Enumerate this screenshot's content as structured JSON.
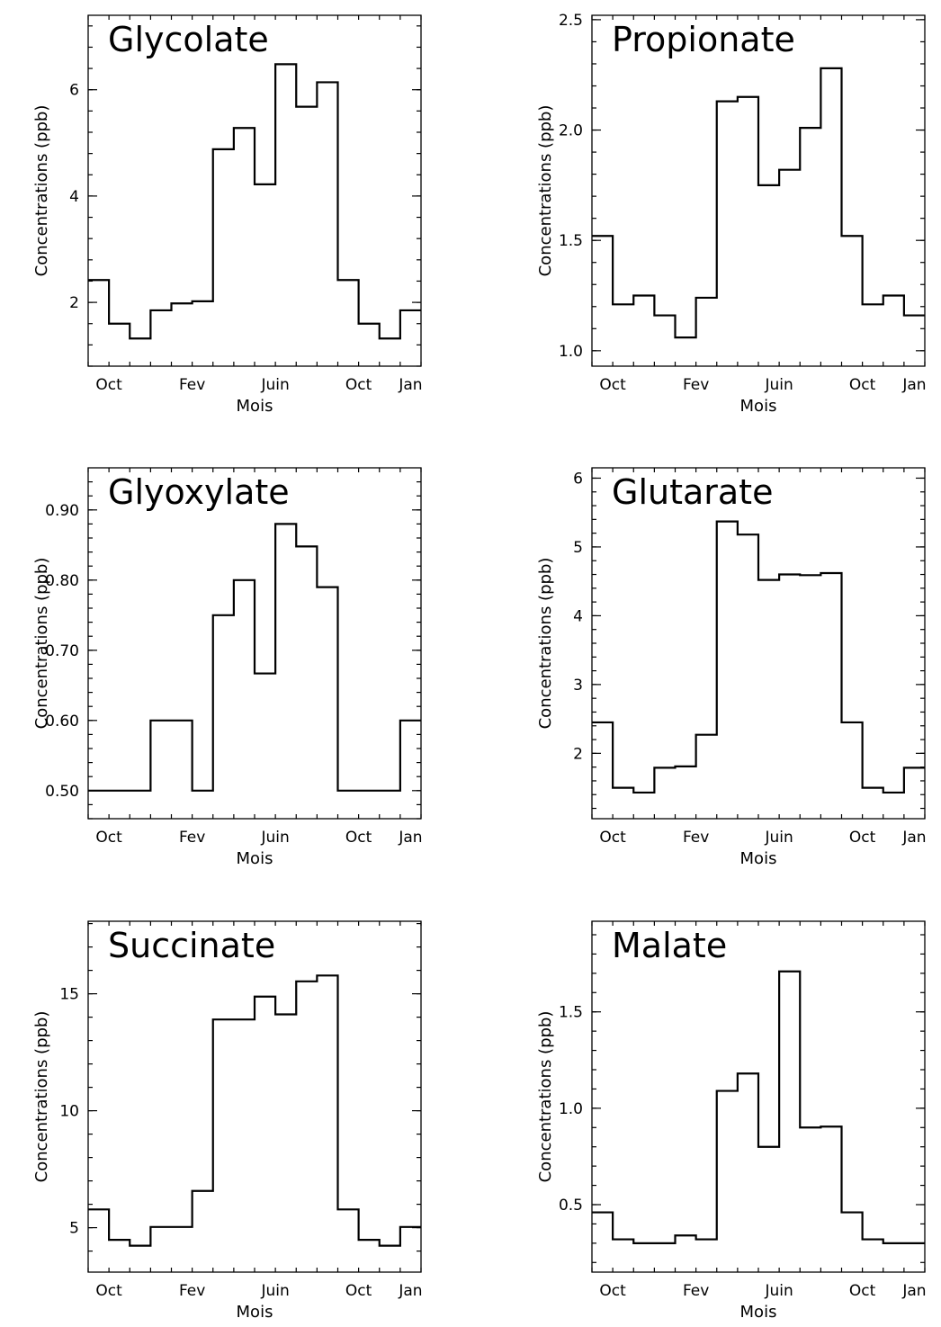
{
  "chart_data": [
    {
      "type": "line",
      "title": "Glycolate",
      "xlabel": "Mois",
      "ylabel": "Concentrations (ppb)",
      "x_tick_labels": [
        "Oct",
        "Fev",
        "Juin",
        "Oct",
        "Jan"
      ],
      "y_ticks": [
        2,
        4,
        6
      ],
      "y_tick_labels": [
        "2",
        "4",
        "6"
      ],
      "ylim": [
        0.8,
        7.4
      ],
      "step": true,
      "values": [
        2.42,
        1.6,
        1.32,
        1.85,
        1.98,
        2.02,
        4.88,
        5.28,
        4.22,
        6.48,
        5.68,
        6.14,
        2.42,
        1.6,
        1.32,
        1.85
      ]
    },
    {
      "type": "line",
      "title": "Propionate",
      "xlabel": "Mois",
      "ylabel": "Concentrations (ppb)",
      "x_tick_labels": [
        "Oct",
        "Fev",
        "Juin",
        "Oct",
        "Jan"
      ],
      "y_ticks": [
        1.0,
        1.5,
        2.0,
        2.5
      ],
      "y_tick_labels": [
        "1.0",
        "1.5",
        "2.0",
        "2.5"
      ],
      "ylim": [
        0.93,
        2.52
      ],
      "step": true,
      "values": [
        1.52,
        1.21,
        1.25,
        1.16,
        1.06,
        1.24,
        2.13,
        2.15,
        1.75,
        1.82,
        2.01,
        2.28,
        1.52,
        1.21,
        1.25,
        1.16
      ]
    },
    {
      "type": "line",
      "title": "Glyoxylate",
      "xlabel": "Mois",
      "ylabel": "Concentrations (ppb)",
      "x_tick_labels": [
        "Oct",
        "Fev",
        "Juin",
        "Oct",
        "Jan"
      ],
      "y_ticks": [
        0.5,
        0.6,
        0.7,
        0.8,
        0.9
      ],
      "y_tick_labels": [
        "0.50",
        "0.60",
        "0.70",
        "0.80",
        "0.90"
      ],
      "ylim": [
        0.46,
        0.96
      ],
      "step": true,
      "values": [
        0.5,
        0.5,
        0.5,
        0.6,
        0.6,
        0.5,
        0.75,
        0.8,
        0.667,
        0.88,
        0.848,
        0.79,
        0.5,
        0.5,
        0.5,
        0.6
      ]
    },
    {
      "type": "line",
      "title": "Glutarate",
      "xlabel": "Mois",
      "ylabel": "Concentrations (ppb)",
      "x_tick_labels": [
        "Oct",
        "Fev",
        "Juin",
        "Oct",
        "Jan"
      ],
      "y_ticks": [
        2,
        3,
        4,
        5,
        6
      ],
      "y_tick_labels": [
        "2",
        "3",
        "4",
        "5",
        "6"
      ],
      "ylim": [
        1.05,
        6.15
      ],
      "step": true,
      "values": [
        2.45,
        1.5,
        1.43,
        1.79,
        1.81,
        2.27,
        5.37,
        5.18,
        4.52,
        4.6,
        4.59,
        4.62,
        2.45,
        1.5,
        1.43,
        1.79
      ]
    },
    {
      "type": "line",
      "title": "Succinate",
      "xlabel": "Mois",
      "ylabel": "Concentrations (ppb)",
      "x_tick_labels": [
        "Oct",
        "Fev",
        "Juin",
        "Oct",
        "Jan"
      ],
      "y_ticks": [
        5,
        10,
        15
      ],
      "y_tick_labels": [
        "5",
        "10",
        "15"
      ],
      "ylim": [
        3.1,
        18.1
      ],
      "step": true,
      "values": [
        5.78,
        4.48,
        4.23,
        5.03,
        5.03,
        6.57,
        13.9,
        13.9,
        14.88,
        14.12,
        15.53,
        15.78,
        5.78,
        4.48,
        4.23,
        5.03
      ]
    },
    {
      "type": "line",
      "title": "Malate",
      "xlabel": "Mois",
      "ylabel": "Concentrations (ppb)",
      "x_tick_labels": [
        "Oct",
        "Fev",
        "Juin",
        "Oct",
        "Jan"
      ],
      "y_ticks": [
        0.5,
        1.0,
        1.5
      ],
      "y_tick_labels": [
        "0.5",
        "1.0",
        "1.5"
      ],
      "ylim": [
        0.15,
        1.97
      ],
      "step": true,
      "values": [
        0.46,
        0.32,
        0.3,
        0.3,
        0.34,
        0.32,
        1.09,
        1.18,
        0.8,
        1.71,
        0.9,
        0.905,
        0.46,
        0.32,
        0.3,
        0.3
      ]
    }
  ]
}
